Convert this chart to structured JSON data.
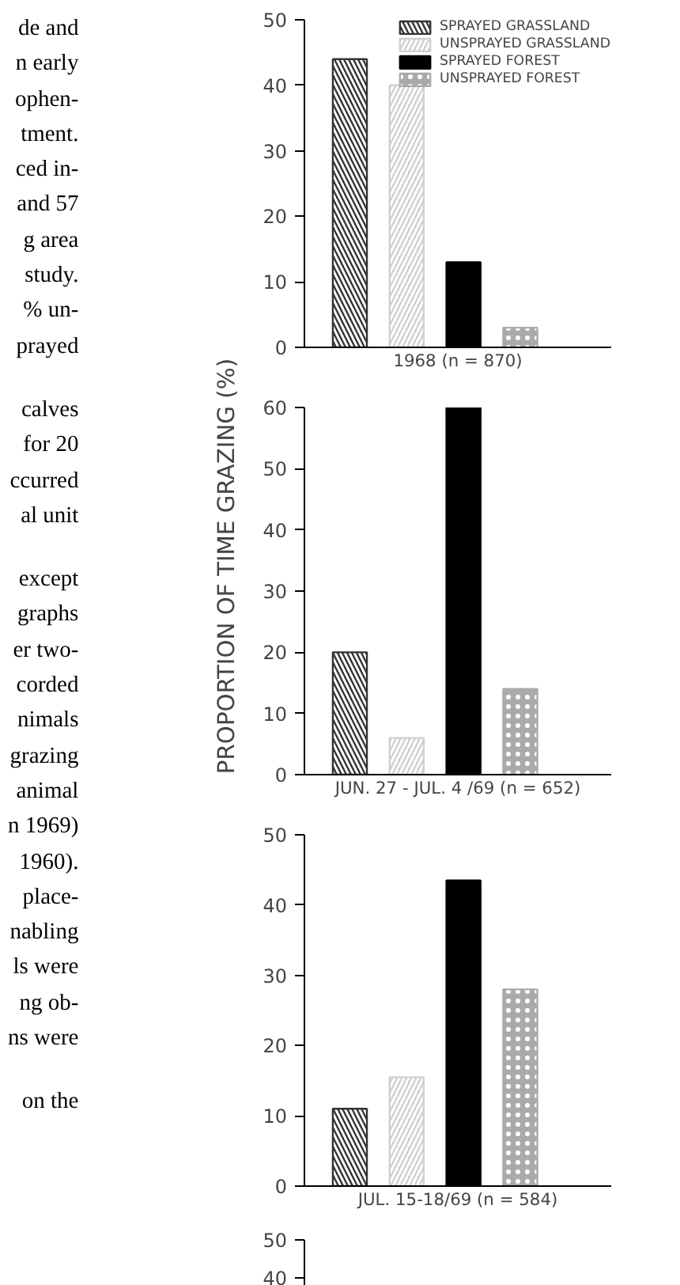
{
  "chart_data": [
    {
      "type": "bar",
      "categories": [
        null
      ],
      "xlabel": "1968 (n = 870)",
      "ylim": [
        0,
        50
      ],
      "yticks": [
        0,
        10,
        20,
        30,
        40,
        50
      ],
      "grid": false,
      "legend": "top right",
      "series": [
        {
          "name": "SPRAYED GRASSLAND",
          "color": "#333333",
          "values": [
            44
          ]
        },
        {
          "name": "UNSPRAYED GRASSLAND",
          "color": "#d0d0d0",
          "values": [
            40
          ]
        },
        {
          "name": "SPRAYED FOREST",
          "color": "#000000",
          "values": [
            13
          ]
        },
        {
          "name": "UNSPRAYED FOREST",
          "color": "#aaaaaa",
          "values": [
            3
          ]
        }
      ],
      "annotations": [
        "de and\nn early\nophen-\ntment.\nced in-\nand 57\ng area\nstudy.\n% un-\nprayed",
        "calves\nfor 20\nccurred\nal unit",
        "except\ngraphs\ner two-\ncorded\nnimals\ngrazing\nanimal\nn 1969)\n1960).\nplace-\nnabling\nls were\nng ob-\nns were",
        "on the"
      ]
    },
    {
      "type": "bar",
      "categories": [
        null
      ],
      "xlabel": "JUN. 27 - JUL. 4 /69 (n = 652)",
      "ylabel": "PROPORTION OF TIME GRAZING (%)",
      "ylim": [
        0,
        60
      ],
      "yticks": [
        0,
        10,
        20,
        30,
        40,
        50,
        60
      ],
      "grid": false,
      "series": [
        {
          "color": "#333333",
          "values": [
            20
          ]
        },
        {
          "color": "#d0d0d0",
          "values": [
            6
          ]
        },
        {
          "color": "#000000",
          "values": [
            60
          ]
        },
        {
          "color": "#aaaaaa",
          "values": [
            14
          ]
        }
      ]
    },
    {
      "type": "bar",
      "categories": [
        null
      ],
      "xlabel": "JUL. 15-18/69 (n = 584)",
      "ylim": [
        0,
        50
      ],
      "yticks": [
        0,
        10,
        20,
        30,
        40,
        50
      ],
      "grid": false,
      "series": [
        {
          "color": "#333333",
          "values": [
            11
          ]
        },
        {
          "color": "#d0d0d0",
          "values": [
            15.5
          ]
        },
        {
          "color": "#000000",
          "values": [
            43.5
          ]
        },
        {
          "color": "#aaaaaa",
          "values": [
            28
          ]
        }
      ]
    },
    {
      "type": "bar",
      "categories": [
        null
      ],
      "ylim": [
        38,
        50
      ],
      "yticks": [
        40,
        50
      ],
      "grid": false,
      "series": [
        {
          "color": "#333333",
          "values": [
            null
          ]
        },
        {
          "color": "#d0d0d0",
          "values": [
            null
          ]
        },
        {
          "color": "#000000",
          "values": [
            null
          ]
        },
        {
          "color": "#aaaaaa",
          "values": [
            null
          ]
        }
      ]
    }
  ]
}
